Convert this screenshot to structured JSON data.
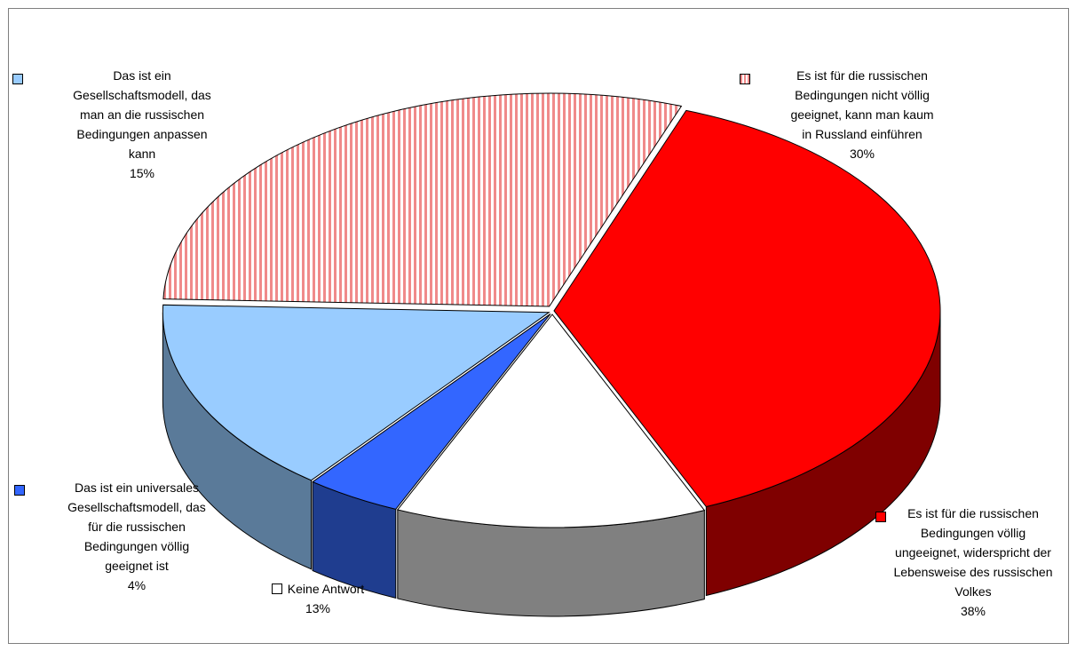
{
  "chart_data": {
    "type": "pie",
    "variant": "3d-exploded",
    "slices": [
      {
        "label": "Es ist für die russischen Bedingungen nicht völlig geeignet, kann man kaum in Russland einführen",
        "value": 30,
        "value_label": "30%",
        "color": "#f4a6a6",
        "pattern": "vertical-stripes"
      },
      {
        "label": "Es ist für die russischen Bedingungen völlig ungeeignet, widerspricht der Lebensweise des russischen Volkes",
        "value": 38,
        "value_label": "38%",
        "color": "#ff0000"
      },
      {
        "label": "Keine Antwort",
        "value": 13,
        "value_label": "13%",
        "color": "#ffffff"
      },
      {
        "label": "Das ist ein universales Gesellschaftsmodell, das für die russischen Bedingungen völlig geeignet ist",
        "value": 4,
        "value_label": "4%",
        "color": "#3366ff"
      },
      {
        "label": "Das ist ein Gesellschaftsmodell, das man an die russischen Bedingungen anpassen kann",
        "value": 15,
        "value_label": "15%",
        "color": "#99ccff"
      }
    ],
    "legend": "none (labels beside slices)"
  },
  "labels": {
    "top_right": {
      "text": "Es ist für die russischen\nBedingungen nicht völlig\ngeeignet, kann man kaum\nin Russland einführen",
      "pct": "30%"
    },
    "bottom_right": {
      "text": "Es ist für die russischen\nBedingungen völlig\nungeeignet, widerspricht der\nLebensweise des russischen\nVolkes",
      "pct": "38%"
    },
    "bottom_center": {
      "text": "Keine Antwort",
      "pct": "13%"
    },
    "bottom_left": {
      "text": "Das ist ein universales\nGesellschaftsmodell, das\nfür die russischen\nBedingungen völlig\ngeeignet ist",
      "pct": "4%"
    },
    "top_left": {
      "text": "Das ist ein\nGesellschaftsmodell, das\nman an die russischen\nBedingungen anpassen\nkann",
      "pct": "15%"
    }
  }
}
